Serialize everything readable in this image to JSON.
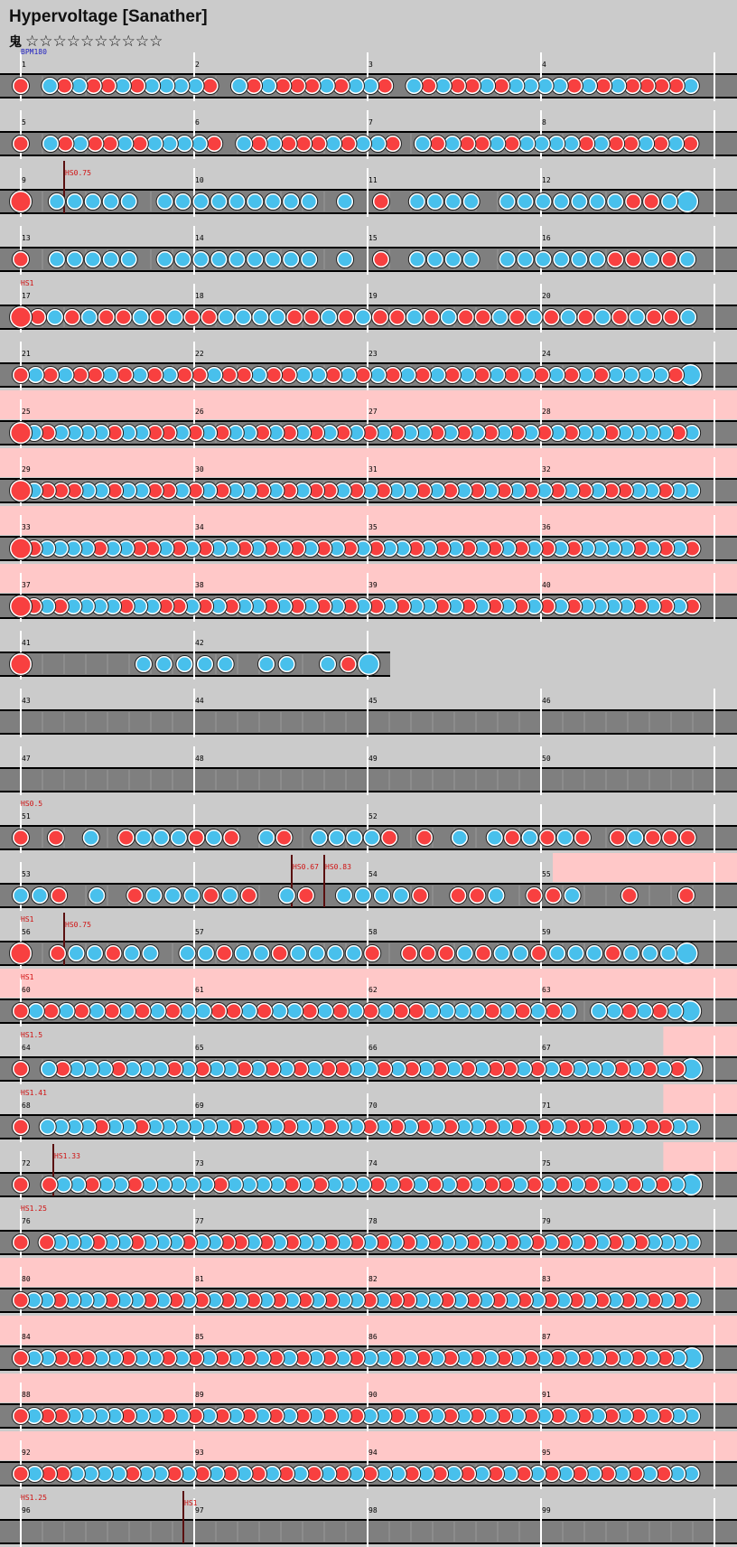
{
  "page": {
    "title": "Hypervoltage [Sanather]",
    "difficulty_label": "鬼",
    "stars": "☆☆☆☆☆☆☆☆☆☆"
  },
  "colors": {
    "background": "#cbcbcb",
    "lane": "#7f7f7f",
    "lane_line": "#000000",
    "gogo": "#ffc8c8",
    "don": "#f84040",
    "ka": "#48c0ec",
    "marker_text": "#d01010",
    "bpm_text": "#2020c0",
    "measure_text": "#000000"
  },
  "rows": [
    {
      "measures": [
        "1",
        "2",
        "3",
        "4"
      ],
      "markers": [
        {
          "beat": 0,
          "label": "BPM180",
          "kind": "bpm"
        }
      ],
      "gogo": [],
      "notes": "D.KDKDDKDKKKKD.KDKDDDKDKKD.KDKDDKDKKKKDKDKDDDDK"
    },
    {
      "measures": [
        "5",
        "6",
        "7",
        "8"
      ],
      "markers": [],
      "gogo": [],
      "notes": "D.KDKDDKDKKKKD.KDKDDDKDKKD.KDKDDKDKKKKDKDDKDKD"
    },
    {
      "measures": [
        "9",
        "10",
        "11",
        "12"
      ],
      "markers": [
        {
          "beat": 2,
          "label": "HS0.75",
          "kind": "hs"
        }
      ],
      "gogo": [],
      "notes": "B.KKKKK.KKKKKKKKK.K.D.KKKK.KKKKKKKDDKB"
    },
    {
      "measures": [
        "13",
        "14",
        "15",
        "16"
      ],
      "markers": [],
      "gogo": [],
      "notes": "D.KKKKK.KKKKKKKKK.K.D.KKKK.KKKKKKDDKDK"
    },
    {
      "measures": [
        "17",
        "18",
        "19",
        "20"
      ],
      "markers": [
        {
          "beat": 0,
          "label": "HS1",
          "kind": "hs"
        }
      ],
      "gogo": [],
      "notes": "BDKDKDDKDKDDKKKKDDKDKDDKDKDDKDKDKDKDKDDK"
    },
    {
      "measures": [
        "21",
        "22",
        "23",
        "24"
      ],
      "markers": [],
      "gogo": [],
      "notes": "DKDKDDKDKDKDDKDDKDDKKDKDKDKDKDKDKDKDKDKDKKKKDB"
    },
    {
      "measures": [
        "25",
        "26",
        "27",
        "28"
      ],
      "markers": [],
      "gogo": [
        [
          0,
          1
        ]
      ],
      "notes": "BKDKKKKDKKDDKDKDKKDKDKDKDKDKDKKDKDKDKDKDKDKKDKKKKDK"
    },
    {
      "measures": [
        "29",
        "30",
        "31",
        "32"
      ],
      "markers": [],
      "gogo": [
        [
          0,
          1
        ]
      ],
      "notes": "BKDDDKKDKKDDKDKDKKDKDKDDKDKDKKDKDKDKDKDKDKDKDDKKDKK"
    },
    {
      "measures": [
        "33",
        "34",
        "35",
        "36"
      ],
      "markers": [],
      "gogo": [
        [
          0,
          1
        ]
      ],
      "notes": "BDKKKKDKKDDKDKDKKDKDKDKDKDKDKKDKDKDKDKDKDKDKKKKDKDKD"
    },
    {
      "measures": [
        "37",
        "38",
        "39",
        "40"
      ],
      "markers": [],
      "gogo": [
        [
          0,
          1
        ]
      ],
      "notes": "BDKDKKKKDKKDDKDKDKKDKDKDKDKDKDKKDKDKDKDKDKDKKKKDKDKD"
    },
    {
      "measures": [
        "41",
        "42"
      ],
      "markers": [],
      "gogo": [],
      "half": true,
      "notes": "B.....KKKKK.KK.KDB"
    },
    {
      "measures": [
        "43",
        "44",
        "45",
        "46"
      ],
      "markers": [],
      "gogo": [],
      "notes": ""
    },
    {
      "measures": [
        "47",
        "48",
        "49",
        "50"
      ],
      "markers": [],
      "gogo": [],
      "notes": ""
    },
    {
      "measures": [
        "51",
        "",
        "52",
        ""
      ],
      "markers": [
        {
          "beat": 0,
          "label": "HS0.5",
          "kind": "hs"
        }
      ],
      "gogo": [],
      "notes": "D.D.K.DKKKDKD.KD.KKKKD.D.K.KDKDKD.DKDDD"
    },
    {
      "measures": [
        "53",
        "",
        "54",
        "55"
      ],
      "markers": [
        {
          "beat": 12.5,
          "label": "HS0.67",
          "kind": "hs"
        },
        {
          "beat": 14,
          "label": "HS0.83",
          "kind": "hs"
        }
      ],
      "gogo": [
        [
          0.75,
          1
        ]
      ],
      "notes": "KKD.K.DKKKDKD.KD.KKKKD.DDK.DDK..D..D"
    },
    {
      "measures": [
        "56",
        "57",
        "58",
        "59"
      ],
      "markers": [
        {
          "beat": 0,
          "label": "HS1",
          "kind": "hs"
        },
        {
          "beat": 2,
          "label": "HS0.75",
          "kind": "hs"
        }
      ],
      "gogo": [],
      "notes": "B.DKKDKK.KKDKKDKKKKD.DDDKDKKDKKKDKKKB"
    },
    {
      "measures": [
        "60",
        "61",
        "62",
        "63"
      ],
      "markers": [
        {
          "beat": 0,
          "label": "HS1",
          "kind": "hs"
        }
      ],
      "gogo": [
        [
          0,
          1
        ]
      ],
      "notes": "DKDKDKDKDKDKKDDKDKKDKDKDKDDKKKKDKDKDK.KKDKDKB"
    },
    {
      "measures": [
        "64",
        "65",
        "66",
        "67"
      ],
      "markers": [
        {
          "beat": 0,
          "label": "HS1.5",
          "kind": "hs"
        }
      ],
      "gogo": [
        [
          0.9,
          1
        ]
      ],
      "notes": "D.KDKKKDKKKDKDKKDKDKDKDDKKDKDKDKDKDDKDKDKKKDKDKDB"
    },
    {
      "measures": [
        "68",
        "69",
        "70",
        "71"
      ],
      "markers": [
        {
          "beat": 0,
          "label": "HS1.41",
          "kind": "hs"
        }
      ],
      "gogo": [
        [
          0.9,
          1
        ]
      ],
      "notes": "D.KKKKDKKDKKKKKKDKDKDKKDKKDKDKDKDKKDKDKDKDDDKDKDDKK"
    },
    {
      "measures": [
        "72",
        "73",
        "74",
        "75"
      ],
      "markers": [
        {
          "beat": 1.5,
          "label": "HS1.33",
          "kind": "hs"
        }
      ],
      "gogo": [
        [
          0.9,
          1
        ]
      ],
      "notes": "D.DKKDKKDKKKKKDKKKKDKDKKKDKDKDKDKDDKDKDKDKKDKDKB"
    },
    {
      "measures": [
        "76",
        "77",
        "78",
        "79"
      ],
      "markers": [
        {
          "beat": 0,
          "label": "HS1.25",
          "kind": "hs"
        }
      ],
      "gogo": [],
      "notes": "D.DKKKDKKDKKKDKKDDKDKDKKDKDKDKDKDKKDKKDKDKDKDKDKDKKKK"
    },
    {
      "measures": [
        "80",
        "81",
        "82",
        "83"
      ],
      "markers": [],
      "gogo": [
        [
          0,
          1
        ]
      ],
      "notes": "DKKDKKKDKKDKDKDKDKDKDKDKDKKDKDDKKDKDKDKDKDKDKDKDKDKDK"
    },
    {
      "measures": [
        "84",
        "85",
        "86",
        "87"
      ],
      "markers": [],
      "gogo": [
        [
          0,
          1
        ]
      ],
      "notes": "DKKDDDKKDKKDKDKDKDKDKDKDKDKKDKDKDKDKDKDKDKDKDKDKDKB"
    },
    {
      "measures": [
        "88",
        "89",
        "90",
        "91"
      ],
      "markers": [],
      "gogo": [
        [
          0,
          1
        ]
      ],
      "notes": "DKDDKKKKDKKDKDKDKDKDKDKDKDKKDKDKDKDKDKDKDKDKDKDKDKK"
    },
    {
      "measures": [
        "92",
        "93",
        "94",
        "95"
      ],
      "markers": [],
      "gogo": [
        [
          0,
          1
        ]
      ],
      "notes": "DKDDKKKKDKKDKDKDKDKDKDKDKDKKDKDKDKDKDKDKDKDKDKDKK"
    },
    {
      "measures": [
        "96",
        "97",
        "98",
        "99"
      ],
      "markers": [
        {
          "beat": 0,
          "label": "HS1.25",
          "kind": "hs"
        },
        {
          "beat": 7.5,
          "label": "HS1",
          "kind": "hs"
        }
      ],
      "gogo": [],
      "notes": ""
    }
  ]
}
